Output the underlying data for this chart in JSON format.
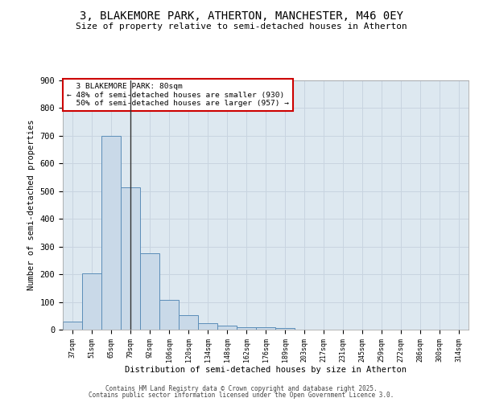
{
  "title": "3, BLAKEMORE PARK, ATHERTON, MANCHESTER, M46 0EY",
  "subtitle": "Size of property relative to semi-detached houses in Atherton",
  "xlabel": "Distribution of semi-detached houses by size in Atherton",
  "ylabel": "Number of semi-detached properties",
  "categories": [
    "37sqm",
    "51sqm",
    "65sqm",
    "79sqm",
    "92sqm",
    "106sqm",
    "120sqm",
    "134sqm",
    "148sqm",
    "162sqm",
    "176sqm",
    "189sqm",
    "203sqm",
    "217sqm",
    "231sqm",
    "245sqm",
    "259sqm",
    "272sqm",
    "286sqm",
    "300sqm",
    "314sqm"
  ],
  "values": [
    30,
    202,
    700,
    515,
    275,
    107,
    53,
    22,
    15,
    10,
    8,
    5,
    0,
    0,
    0,
    0,
    0,
    0,
    0,
    0,
    0
  ],
  "bar_color": "#c9d9e8",
  "bar_edge_color": "#5b8db8",
  "grid_color": "#c8d4e0",
  "background_color": "#dde8f0",
  "property_bar_index": 3,
  "property_label": "3 BLAKEMORE PARK: 80sqm",
  "pct_smaller": 48,
  "pct_smaller_count": 930,
  "pct_larger": 50,
  "pct_larger_count": 957,
  "vline_color": "#333333",
  "annotation_box_color": "#cc0000",
  "ylim": [
    0,
    900
  ],
  "yticks": [
    0,
    100,
    200,
    300,
    400,
    500,
    600,
    700,
    800,
    900
  ],
  "footer_line1": "Contains HM Land Registry data © Crown copyright and database right 2025.",
  "footer_line2": "Contains public sector information licensed under the Open Government Licence 3.0."
}
